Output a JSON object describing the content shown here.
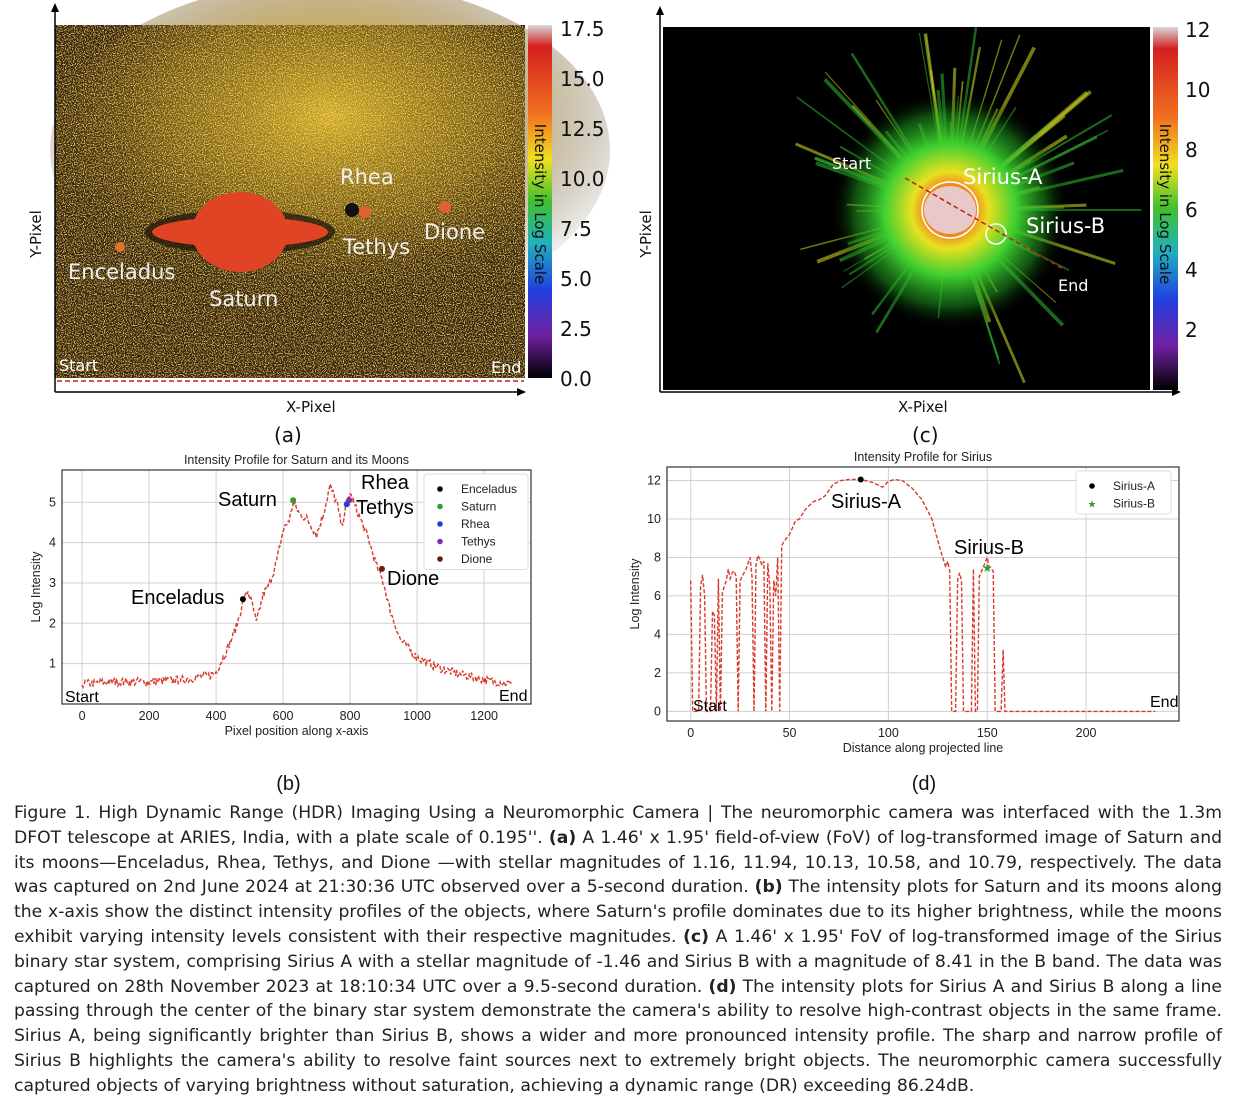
{
  "panel_a": {
    "letter": "(a)",
    "xlabel": "X-Pixel",
    "ylabel": "Y-Pixel",
    "colorbar_label": "Intensity in Log Scale",
    "colorbar_ticks": [
      "17.5",
      "15.0",
      "12.5",
      "10.0",
      "7.5",
      "5.0",
      "2.5",
      "0.0"
    ],
    "labels": {
      "rhea": "Rhea",
      "tethys": "Tethys",
      "dione": "Dione",
      "enceladus": "Enceladus",
      "saturn": "Saturn",
      "start": "Start",
      "end": "End"
    }
  },
  "panel_c": {
    "letter": "(c)",
    "xlabel": "X-Pixel",
    "ylabel": "Y-Pixel",
    "colorbar_label": "Intensity in Log Scale",
    "colorbar_ticks": [
      "12",
      "10",
      "8",
      "6",
      "4",
      "2"
    ],
    "labels": {
      "start": "Start",
      "sirius_a": "Sirius-A",
      "sirius_b": "Sirius-B",
      "end": "End"
    }
  },
  "chart_data": [
    {
      "type": "line",
      "letter": "(b)",
      "title": "Intensity Profile for Saturn and its Moons",
      "xlabel": "Pixel position along x-axis",
      "ylabel": "Log Intensity",
      "xlim": [
        -60,
        1340
      ],
      "ylim": [
        0,
        5.8
      ],
      "xticks": [
        "0",
        "200",
        "400",
        "600",
        "800",
        "1000",
        "1200"
      ],
      "yticks": [
        "1",
        "2",
        "3",
        "4",
        "5"
      ],
      "grid": true,
      "legend_position": "top-right",
      "color": "#d93a2b",
      "series": [
        {
          "name": "profile",
          "points": [
            [
              0,
              0.5
            ],
            [
              100,
              0.55
            ],
            [
              200,
              0.55
            ],
            [
              300,
              0.6
            ],
            [
              380,
              0.7
            ],
            [
              400,
              0.8
            ],
            [
              430,
              1.3
            ],
            [
              460,
              1.9
            ],
            [
              480,
              2.5
            ],
            [
              495,
              2.8
            ],
            [
              510,
              2.4
            ],
            [
              520,
              2.0
            ],
            [
              540,
              2.7
            ],
            [
              560,
              3.0
            ],
            [
              580,
              3.5
            ],
            [
              600,
              4.3
            ],
            [
              620,
              4.6
            ],
            [
              630,
              5.0
            ],
            [
              650,
              4.7
            ],
            [
              670,
              4.6
            ],
            [
              700,
              4.2
            ],
            [
              720,
              4.7
            ],
            [
              740,
              5.4
            ],
            [
              760,
              5.0
            ],
            [
              775,
              4.4
            ],
            [
              790,
              5.0
            ],
            [
              800,
              5.2
            ],
            [
              820,
              4.8
            ],
            [
              850,
              4.2
            ],
            [
              880,
              3.4
            ],
            [
              900,
              3.0
            ],
            [
              920,
              2.3
            ],
            [
              950,
              1.6
            ],
            [
              1000,
              1.15
            ],
            [
              1050,
              0.95
            ],
            [
              1100,
              0.8
            ],
            [
              1150,
              0.7
            ],
            [
              1200,
              0.6
            ],
            [
              1280,
              0.5
            ]
          ]
        }
      ],
      "markers": [
        {
          "name": "Enceladus",
          "x": 480,
          "y": 2.6,
          "color": "#000000"
        },
        {
          "name": "Saturn",
          "x": 630,
          "y": 5.05,
          "color": "#2ca02c"
        },
        {
          "name": "Rhea",
          "x": 790,
          "y": 4.95,
          "color": "#1f3fe0"
        },
        {
          "name": "Tethys",
          "x": 797,
          "y": 5.05,
          "color": "#7b2fa8"
        },
        {
          "name": "Dione",
          "x": 895,
          "y": 3.35,
          "color": "#6b1a10"
        }
      ],
      "annotations": [
        "Saturn",
        "Rhea",
        "Tethys",
        "Enceladus",
        "Dione",
        "Start",
        "End"
      ]
    },
    {
      "type": "line",
      "letter": "(d)",
      "title": "Intensity Profile for Sirius",
      "xlabel": "Distance along projected line",
      "ylabel": "Log Intensity",
      "xlim": [
        -12,
        247
      ],
      "ylim": [
        -0.5,
        12.7
      ],
      "xticks": [
        "0",
        "50",
        "100",
        "150",
        "200"
      ],
      "yticks": [
        "0",
        "2",
        "4",
        "6",
        "8",
        "10",
        "12"
      ],
      "grid": true,
      "legend_position": "top-right",
      "color": "#d93a2b",
      "series": [
        {
          "name": "profile",
          "points": [
            [
              0,
              6.8
            ],
            [
              1,
              0
            ],
            [
              4,
              0
            ],
            [
              5,
              6.5
            ],
            [
              6,
              7.1
            ],
            [
              7,
              6.0
            ],
            [
              8,
              0
            ],
            [
              10,
              0
            ],
            [
              11,
              5.2
            ],
            [
              12,
              5.0
            ],
            [
              13,
              0
            ],
            [
              14,
              6.9
            ],
            [
              15,
              0
            ],
            [
              16,
              6.2
            ],
            [
              18,
              6.8
            ],
            [
              19,
              7.4
            ],
            [
              20,
              6.9
            ],
            [
              21,
              7.2
            ],
            [
              22,
              7.3
            ],
            [
              23,
              7.0
            ],
            [
              24,
              0
            ],
            [
              25,
              6.8
            ],
            [
              28,
              7.4
            ],
            [
              30,
              8.0
            ],
            [
              31,
              7.0
            ],
            [
              32,
              0
            ],
            [
              33,
              7.6
            ],
            [
              34,
              8.1
            ],
            [
              35,
              7.9
            ],
            [
              36,
              7.6
            ],
            [
              37,
              7.8
            ],
            [
              38,
              0
            ],
            [
              39,
              7.7
            ],
            [
              40,
              6.5
            ],
            [
              41,
              0
            ],
            [
              42,
              6.8
            ],
            [
              43,
              6.0
            ],
            [
              44,
              8.0
            ],
            [
              45,
              0
            ],
            [
              46,
              8.6
            ],
            [
              47,
              8.8
            ],
            [
              50,
              9.2
            ],
            [
              53,
              9.9
            ],
            [
              55,
              10.0
            ],
            [
              58,
              10.5
            ],
            [
              62,
              10.9
            ],
            [
              65,
              11.0
            ],
            [
              68,
              11.2
            ],
            [
              72,
              11.8
            ],
            [
              76,
              12.0
            ],
            [
              80,
              12.05
            ],
            [
              86,
              12.05
            ],
            [
              92,
              11.9
            ],
            [
              97,
              11.65
            ],
            [
              100,
              11.95
            ],
            [
              103,
              12.05
            ],
            [
              107,
              12.0
            ],
            [
              112,
              11.6
            ],
            [
              117,
              11.0
            ],
            [
              122,
              10.0
            ],
            [
              126,
              8.5
            ],
            [
              129,
              7.5
            ],
            [
              130,
              7.8
            ],
            [
              131,
              7.3
            ],
            [
              132,
              0
            ],
            [
              134,
              0
            ],
            [
              135,
              6.8
            ],
            [
              136,
              7.2
            ],
            [
              137,
              6.8
            ],
            [
              138,
              0
            ],
            [
              142,
              0
            ],
            [
              143,
              7.4
            ],
            [
              144,
              0
            ],
            [
              145,
              0
            ],
            [
              146,
              7.0
            ],
            [
              148,
              7.5
            ],
            [
              150,
              8.0
            ],
            [
              151,
              7.5
            ],
            [
              153,
              7.3
            ],
            [
              154,
              0
            ],
            [
              157,
              0
            ],
            [
              158,
              3.2
            ],
            [
              159,
              0
            ],
            [
              160,
              0
            ],
            [
              235,
              0
            ]
          ]
        }
      ],
      "markers": [
        {
          "name": "Sirius-A",
          "x": 86,
          "y": 12.05,
          "color": "#000000",
          "shape": "circle"
        },
        {
          "name": "Sirius-B",
          "x": 150,
          "y": 7.5,
          "color": "#2ca02c",
          "shape": "star"
        }
      ],
      "annotations": [
        "Sirius-A",
        "Sirius-B",
        "Start",
        "End"
      ]
    }
  ],
  "caption": [
    {
      "t": "Figure 1. High Dynamic Range (HDR) Imaging Using a Neuromorphic Camera | The neuromorphic camera was interfaced with the 1.3m DFOT telescope at ARIES, India, with a plate scale of 0.195''. ",
      "b": false
    },
    {
      "t": "(a)",
      "b": true
    },
    {
      "t": " A 1.46' x 1.95' field-of-view (FoV) of log-transformed image of Saturn and its moons—Enceladus, Rhea, Tethys, and Dione —with stellar magnitudes of 1.16, 11.94, 10.13, 10.58, and 10.79, respectively. The data was captured on 2nd June 2024 at 21:30:36 UTC observed over a 5-second duration. ",
      "b": false
    },
    {
      "t": "(b)",
      "b": true
    },
    {
      "t": " The intensity plots for Saturn and its moons along the x-axis show the distinct intensity profiles of the objects, where Saturn's profile dominates due to its higher brightness, while the moons exhibit varying intensity levels consistent with their respective magnitudes. ",
      "b": false
    },
    {
      "t": "(c)",
      "b": true
    },
    {
      "t": " A 1.46' x 1.95' FoV of log-transformed image of the Sirius binary star system, comprising Sirius A with a stellar magnitude of -1.46 and Sirius B with a magnitude of 8.41 in the B band. The data was captured on 28th November 2023 at 18:10:34 UTC over a 9.5-second duration. ",
      "b": false
    },
    {
      "t": "(d)",
      "b": true
    },
    {
      "t": " The intensity plots for Sirius A and Sirius B along a line passing through the center of the binary star system demonstrate the camera's ability to resolve high-contrast objects in the same frame. Sirius A, being significantly brighter than Sirius B, shows a wider and more pronounced intensity profile. The sharp and narrow profile of Sirius B highlights the camera's ability to resolve faint sources next to extremely bright objects. The neuromorphic camera successfully captured objects of varying brightness without saturation, achieving a dynamic range (DR) exceeding 86.24dB.",
      "b": false
    }
  ]
}
